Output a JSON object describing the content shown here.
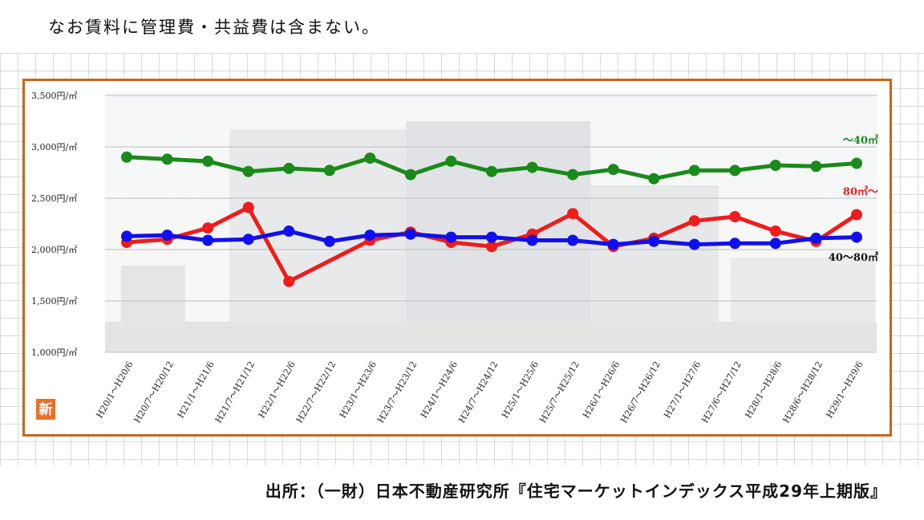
{
  "note_text": "なお賃料に管理費・共益費は含まない。",
  "source_text": "出所：（一財）日本不動産研究所『住宅マーケットインデックス平成29年上期版』",
  "new_badge": "新",
  "chart_data": {
    "type": "line",
    "title": "",
    "xlabel": "",
    "ylabel": "",
    "ylim": [
      1000,
      3500
    ],
    "y_ticks": [
      1000,
      1500,
      2000,
      2500,
      3000,
      3500
    ],
    "y_tick_labels": [
      "1,000円/㎡",
      "1,500円/㎡",
      "2,000円/㎡",
      "2,500円/㎡",
      "3,000円/㎡",
      "3,500円/㎡"
    ],
    "categories": [
      "H20/1～H20/6",
      "H20/7～H20/12",
      "H21/1～H21/6",
      "H21/7～H21/12",
      "H22/1～H22/6",
      "H22/7～H22/12",
      "H23/1～H23/6",
      "H23/7～H23/12",
      "H24/1～H24/6",
      "H24/7～H24/12",
      "H25/1～H25/6",
      "H25/7～H25/12",
      "H26/1～H26/6",
      "H26/7～H26/12",
      "H27/1～H27/6",
      "H27/6～H27/12",
      "H28/1～H28/6",
      "H28/6～H28/12",
      "H29/1～H29/6"
    ],
    "series": [
      {
        "name": "～40㎡",
        "color": "#1a8a1a",
        "values": [
          2900,
          2880,
          2860,
          2760,
          2790,
          2770,
          2890,
          2730,
          2860,
          2760,
          2800,
          2730,
          2780,
          2690,
          2770,
          2770,
          2820,
          2810,
          2840
        ]
      },
      {
        "name": "80㎡～",
        "color": "#ee1c1c",
        "values": [
          2070,
          2100,
          2210,
          2410,
          1690,
          null,
          2090,
          2170,
          2070,
          2030,
          2150,
          2350,
          2030,
          2110,
          2280,
          2320,
          2180,
          2080,
          2340
        ]
      },
      {
        "name": "40～80㎡",
        "color": "#1010ee",
        "values": [
          2130,
          2140,
          2090,
          2100,
          2180,
          2080,
          2140,
          2150,
          2120,
          2120,
          2090,
          2090,
          2050,
          2080,
          2050,
          2060,
          2060,
          2110,
          2120
        ]
      }
    ]
  }
}
